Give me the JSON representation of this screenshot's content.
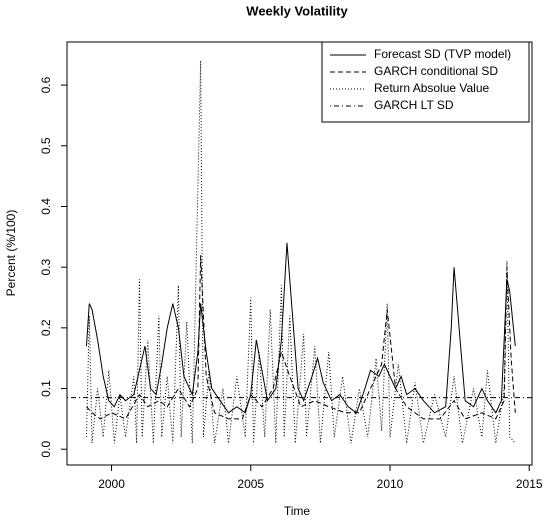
{
  "chart_data": {
    "type": "line",
    "title": "Weekly Volatility",
    "xlabel": "Time",
    "ylabel": "Percent (%/100)",
    "xlim": [
      1998.4,
      2015.1
    ],
    "ylim": [
      -0.026,
      0.671
    ],
    "xticks": [
      2000,
      2005,
      2010,
      2015
    ],
    "yticks": [
      {
        "value": 0,
        "label": "0.0"
      },
      0.1,
      0.2,
      0.3,
      0.4,
      0.5,
      0.6
    ],
    "legend": "top-right",
    "series": [
      {
        "name": "Forecast SD (TVP model)",
        "color": "#000000",
        "dash": "solid",
        "x": [
          1999.1,
          1999.2,
          1999.3,
          1999.5,
          1999.7,
          1999.9,
          2000.1,
          2000.3,
          2000.5,
          2000.8,
          2001.0,
          2001.1,
          2001.2,
          2001.4,
          2001.6,
          2001.8,
          2002.0,
          2002.2,
          2002.4,
          2002.6,
          2002.9,
          2003.1,
          2003.2,
          2003.4,
          2003.6,
          2003.9,
          2004.2,
          2004.5,
          2004.8,
          2005.0,
          2005.2,
          2005.4,
          2005.6,
          2005.9,
          2006.1,
          2006.3,
          2006.5,
          2006.7,
          2006.9,
          2007.2,
          2007.4,
          2007.6,
          2007.9,
          2008.2,
          2008.5,
          2008.8,
          2009.1,
          2009.3,
          2009.6,
          2009.8,
          2010.0,
          2010.2,
          2010.4,
          2010.6,
          2010.9,
          2011.2,
          2011.6,
          2012.0,
          2012.2,
          2012.3,
          2012.5,
          2012.7,
          2013.0,
          2013.3,
          2013.5,
          2013.8,
          2014.0,
          2014.2,
          2014.3,
          2014.5
        ],
        "values": [
          0.17,
          0.24,
          0.23,
          0.18,
          0.12,
          0.08,
          0.07,
          0.09,
          0.08,
          0.09,
          0.13,
          0.15,
          0.17,
          0.1,
          0.09,
          0.14,
          0.2,
          0.24,
          0.2,
          0.12,
          0.09,
          0.16,
          0.24,
          0.16,
          0.1,
          0.08,
          0.06,
          0.07,
          0.06,
          0.09,
          0.18,
          0.13,
          0.08,
          0.1,
          0.18,
          0.34,
          0.22,
          0.1,
          0.08,
          0.12,
          0.15,
          0.11,
          0.08,
          0.09,
          0.07,
          0.06,
          0.1,
          0.13,
          0.12,
          0.14,
          0.12,
          0.1,
          0.12,
          0.09,
          0.1,
          0.08,
          0.06,
          0.07,
          0.2,
          0.3,
          0.19,
          0.08,
          0.07,
          0.1,
          0.08,
          0.06,
          0.08,
          0.28,
          0.26,
          0.17
        ]
      },
      {
        "name": "GARCH conditional SD",
        "color": "#000000",
        "dash": "dashed",
        "x": [
          1999.1,
          1999.3,
          1999.6,
          2000.0,
          2000.5,
          2001.0,
          2001.3,
          2001.7,
          2002.0,
          2002.4,
          2002.8,
          2003.1,
          2003.2,
          2003.4,
          2003.7,
          2004.2,
          2004.7,
          2005.0,
          2005.4,
          2005.8,
          2006.1,
          2006.4,
          2006.8,
          2007.3,
          2007.8,
          2008.4,
          2008.9,
          2009.3,
          2009.7,
          2009.9,
          2010.2,
          2010.6,
          2011.2,
          2011.8,
          2012.3,
          2012.7,
          2013.3,
          2013.8,
          2014.1,
          2014.2,
          2014.35,
          2014.5
        ],
        "values": [
          0.07,
          0.06,
          0.05,
          0.06,
          0.05,
          0.09,
          0.07,
          0.08,
          0.07,
          0.1,
          0.07,
          0.1,
          0.32,
          0.12,
          0.06,
          0.05,
          0.05,
          0.09,
          0.07,
          0.1,
          0.16,
          0.12,
          0.07,
          0.08,
          0.07,
          0.06,
          0.06,
          0.1,
          0.14,
          0.23,
          0.1,
          0.07,
          0.05,
          0.05,
          0.08,
          0.05,
          0.06,
          0.05,
          0.08,
          0.3,
          0.15,
          0.06
        ]
      },
      {
        "name": "Return Absolue Value",
        "color": "#000000",
        "dash": "dotted",
        "x": [
          1999.1,
          1999.2,
          1999.3,
          1999.5,
          1999.7,
          1999.9,
          2000.1,
          2000.3,
          2000.5,
          2000.8,
          2000.9,
          2001.0,
          2001.1,
          2001.3,
          2001.5,
          2001.7,
          2001.8,
          2002.0,
          2002.2,
          2002.4,
          2002.5,
          2002.7,
          2002.9,
          2003.2,
          2003.3,
          2003.5,
          2003.7,
          2004.0,
          2004.2,
          2004.5,
          2004.8,
          2005.0,
          2005.1,
          2005.3,
          2005.5,
          2005.7,
          2005.9,
          2006.1,
          2006.2,
          2006.4,
          2006.6,
          2006.9,
          2007.0,
          2007.3,
          2007.5,
          2007.8,
          2008.0,
          2008.3,
          2008.6,
          2008.9,
          2009.2,
          2009.5,
          2009.7,
          2009.9,
          2010.0,
          2010.3,
          2010.6,
          2010.9,
          2011.2,
          2011.6,
          2012.0,
          2012.3,
          2012.6,
          2013.0,
          2013.3,
          2013.5,
          2013.8,
          2014.1,
          2014.2,
          2014.3,
          2014.5
        ],
        "values": [
          0.02,
          0.22,
          0.01,
          0.1,
          0.02,
          0.13,
          0.01,
          0.09,
          0.02,
          0.12,
          0.01,
          0.28,
          0.02,
          0.18,
          0.01,
          0.22,
          0.02,
          0.12,
          0.01,
          0.27,
          0.02,
          0.21,
          0.01,
          0.64,
          0.02,
          0.13,
          0.01,
          0.1,
          0.01,
          0.12,
          0.02,
          0.25,
          0.01,
          0.16,
          0.02,
          0.23,
          0.01,
          0.27,
          0.02,
          0.22,
          0.01,
          0.19,
          0.02,
          0.17,
          0.01,
          0.16,
          0.02,
          0.12,
          0.01,
          0.1,
          0.02,
          0.15,
          0.03,
          0.24,
          0.02,
          0.14,
          0.01,
          0.11,
          0.01,
          0.09,
          0.02,
          0.12,
          0.01,
          0.1,
          0.02,
          0.13,
          0.01,
          0.1,
          0.31,
          0.02,
          0.01
        ]
      },
      {
        "name": "GARCH LT SD",
        "color": "#000000",
        "dash": "dotdash",
        "kind": "hline",
        "values": [
          0.085
        ]
      }
    ]
  }
}
